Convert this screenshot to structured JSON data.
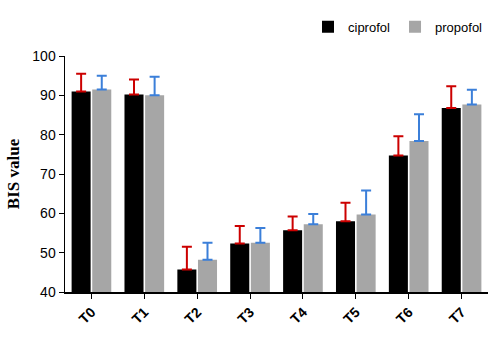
{
  "chart_data": {
    "type": "bar",
    "y_label": "BIS value",
    "categories": [
      "T0",
      "T1",
      "T2",
      "T3",
      "T4",
      "T5",
      "T6",
      "T7"
    ],
    "series": [
      {
        "name": "ciprofol",
        "color": "#000000",
        "values": [
          91,
          90.2,
          45.7,
          52.3,
          55.7,
          58,
          74.7,
          86.8
        ],
        "errors": [
          4.5,
          3.8,
          5.8,
          4.5,
          3.5,
          4.7,
          4.9,
          5.5
        ]
      },
      {
        "name": "propofol",
        "color": "#a6a6a6",
        "values": [
          91.5,
          90,
          48.2,
          52.5,
          57.2,
          59.7,
          78.4,
          87.7
        ],
        "errors": [
          3.5,
          4.7,
          4.3,
          3.8,
          2.6,
          6.1,
          6.8,
          3.7
        ]
      }
    ],
    "ylim": [
      40,
      100
    ],
    "yticks": [
      40,
      50,
      60,
      70,
      80,
      90,
      100
    ],
    "grid": false,
    "legend": "top right"
  }
}
